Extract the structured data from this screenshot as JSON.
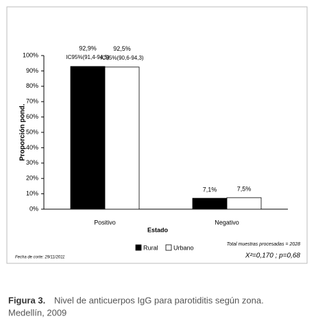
{
  "chart_data": {
    "type": "bar",
    "categories": [
      "Positivo",
      "Negativo"
    ],
    "series": [
      {
        "name": "Rural",
        "color": "#000000",
        "values": [
          92.9,
          7.1
        ],
        "value_labels": [
          "92,9%",
          "7,1%"
        ]
      },
      {
        "name": "Urbano",
        "color": "#ffffff",
        "values": [
          92.5,
          7.5
        ],
        "value_labels": [
          "92,5%",
          "7,5%"
        ]
      }
    ],
    "annotations": [
      "IC95%(91,4-94,5)",
      "IC95%(90,6-94,3)"
    ],
    "ylim": [
      0,
      100
    ],
    "yticks": [
      {
        "value": 0,
        "label": "0%"
      },
      {
        "value": 10,
        "label": "10%"
      },
      {
        "value": 20,
        "label": "20%"
      },
      {
        "value": 30,
        "label": "30%"
      },
      {
        "value": 40,
        "label": "40%"
      },
      {
        "value": 50,
        "label": "50%"
      },
      {
        "value": 60,
        "label": "60%"
      },
      {
        "value": 70,
        "label": "70%"
      },
      {
        "value": 80,
        "label": "80%"
      },
      {
        "value": 90,
        "label": "90%"
      },
      {
        "value": 100,
        "label": "100%"
      }
    ],
    "ylabel": "Proporción pond.",
    "xlabel": "Estado",
    "notes": [
      "Total muestras procesadas = 2028",
      "X²=0,170 ; p=0,68",
      "Fecha de corte: 29/11/2011"
    ],
    "caption": {
      "label": "Figura 3.",
      "lines": [
        "Nivel de anticuerpos IgG para parotiditis según zona.",
        "Medellín, 2009"
      ]
    }
  }
}
